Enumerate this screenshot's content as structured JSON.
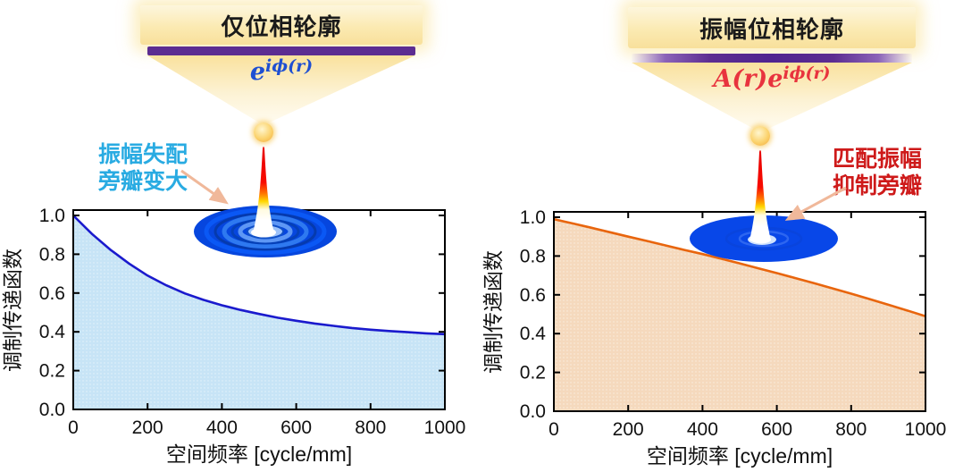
{
  "figure": {
    "left": {
      "title": "仅位相轮廓",
      "formula_base": "e",
      "formula_exp": "iϕ(r)",
      "annotation_line1": "振幅失配",
      "annotation_line2": "旁瓣变大"
    },
    "right": {
      "title": "振幅位相轮廓",
      "formula_base": "A(r)e",
      "formula_exp": "iϕ(r)",
      "annotation_line1": "匹配振幅",
      "annotation_line2": "抑制旁瓣"
    },
    "colors": {
      "pupil_bar_purple": "#5c2d91",
      "left_formula_blue": "#1e4fd2",
      "right_formula_red": "#e8333e",
      "left_annotation_cyan": "#29abe2",
      "right_annotation_red": "#ce1a1a",
      "arrow_salmon": "#f0b89a"
    }
  },
  "chart_data": [
    {
      "type": "area",
      "panel": "left",
      "title": "",
      "xlabel": "空间频率 [cycle/mm]",
      "ylabel": "调制传递函数",
      "xlim": [
        0,
        1000
      ],
      "ylim": [
        0,
        1.05
      ],
      "xticks": [
        0,
        200,
        400,
        600,
        800,
        1000
      ],
      "yticks": [
        0.0,
        0.2,
        0.4,
        0.6,
        0.8,
        1.0
      ],
      "grid": false,
      "legend": "none",
      "x": [
        0,
        50,
        100,
        150,
        200,
        250,
        300,
        350,
        400,
        450,
        500,
        550,
        600,
        650,
        700,
        750,
        800,
        850,
        900,
        950,
        1000
      ],
      "values": [
        1.0,
        0.905,
        0.823,
        0.752,
        0.69,
        0.64,
        0.598,
        0.565,
        0.537,
        0.513,
        0.492,
        0.473,
        0.457,
        0.443,
        0.431,
        0.42,
        0.411,
        0.404,
        0.398,
        0.392,
        0.388
      ],
      "line_color": "#1a1acd",
      "fill_color": "#c7e4f6"
    },
    {
      "type": "area",
      "panel": "right",
      "title": "",
      "xlabel": "空间频率 [cycle/mm]",
      "ylabel": "调制传递函数",
      "xlim": [
        0,
        1000
      ],
      "ylim": [
        0,
        1.05
      ],
      "xticks": [
        0,
        200,
        400,
        600,
        800,
        1000
      ],
      "yticks": [
        0.0,
        0.2,
        0.4,
        0.6,
        0.8,
        1.0
      ],
      "grid": false,
      "legend": "none",
      "x": [
        0,
        50,
        100,
        150,
        200,
        250,
        300,
        350,
        400,
        450,
        500,
        550,
        600,
        650,
        700,
        750,
        800,
        850,
        900,
        950,
        1000
      ],
      "values": [
        0.99,
        0.968,
        0.946,
        0.923,
        0.9,
        0.878,
        0.855,
        0.832,
        0.81,
        0.786,
        0.762,
        0.737,
        0.712,
        0.686,
        0.66,
        0.633,
        0.606,
        0.578,
        0.549,
        0.52,
        0.49
      ],
      "line_color": "#e8650d",
      "fill_color": "#f5d9bd"
    }
  ]
}
